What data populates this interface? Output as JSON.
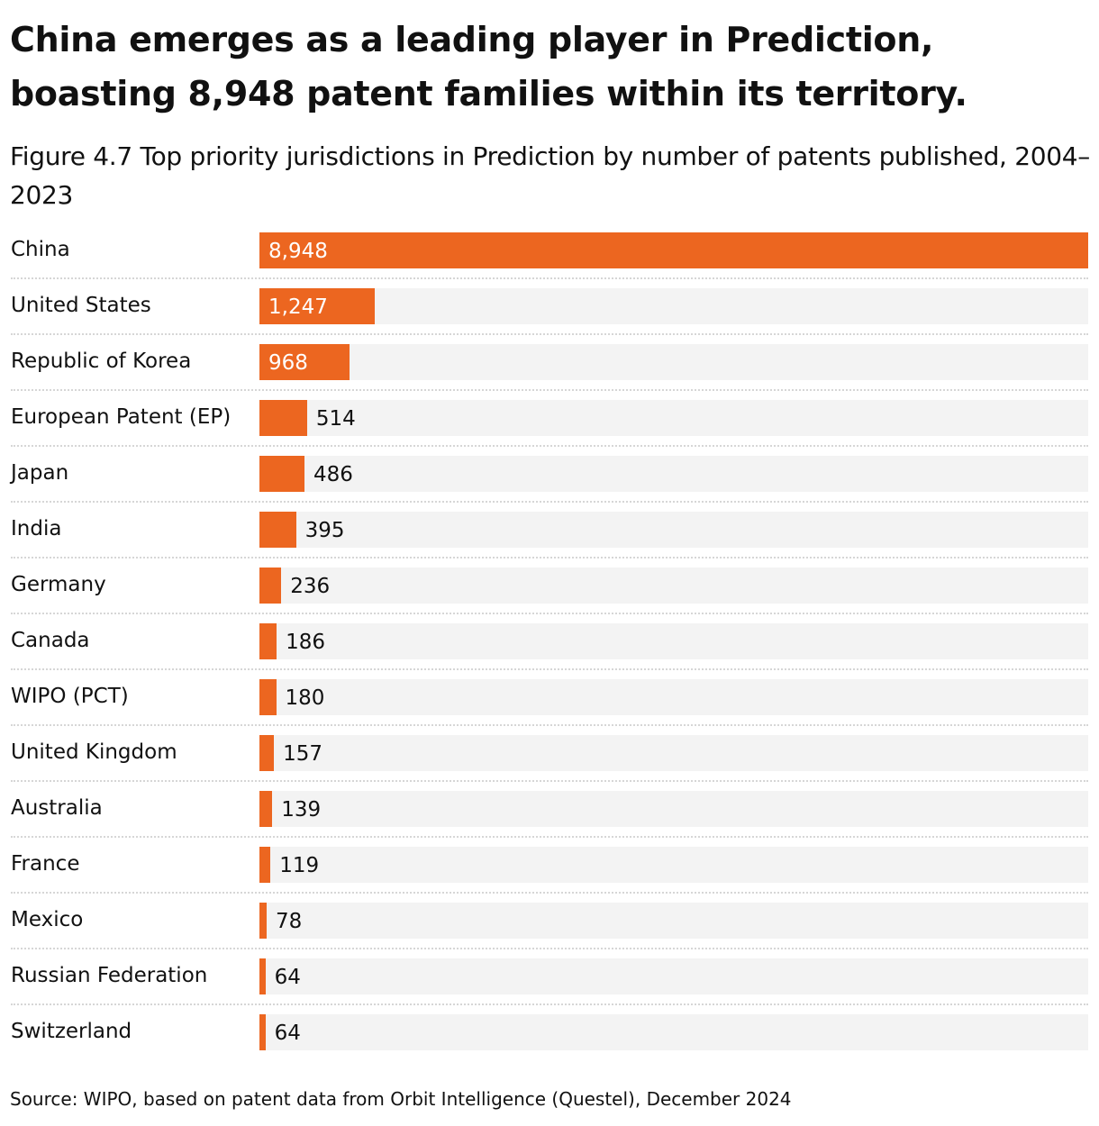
{
  "title": "China emerges as a leading player in Prediction, boasting 8,948 patent families within its territory.",
  "subtitle": "Figure 4.7 Top priority jurisdictions in Prediction by number of patents published, 2004–2023",
  "source": "Source: WIPO, based on patent data from Orbit Intelligence (Questel), December 2024",
  "colors": {
    "bar": "#ec6620",
    "track": "#f3f3f3"
  },
  "chart_data": {
    "type": "bar",
    "orientation": "horizontal",
    "title": "Figure 4.7 Top priority jurisdictions in Prediction by number of patents published, 2004–2023",
    "categories": [
      "China",
      "United States",
      "Republic of Korea",
      "European Patent (EP)",
      "Japan",
      "India",
      "Germany",
      "Canada",
      "WIPO (PCT)",
      "United Kingdom",
      "Australia",
      "France",
      "Mexico",
      "Russian Federation",
      "Switzerland"
    ],
    "values": [
      8948,
      1247,
      968,
      514,
      486,
      395,
      236,
      186,
      180,
      157,
      139,
      119,
      78,
      64,
      64
    ],
    "value_labels": [
      "8,948",
      "1,247",
      "968",
      "514",
      "486",
      "395",
      "236",
      "186",
      "180",
      "157",
      "139",
      "119",
      "78",
      "64",
      "64"
    ],
    "xlim": [
      0,
      8948
    ],
    "grid": false
  }
}
